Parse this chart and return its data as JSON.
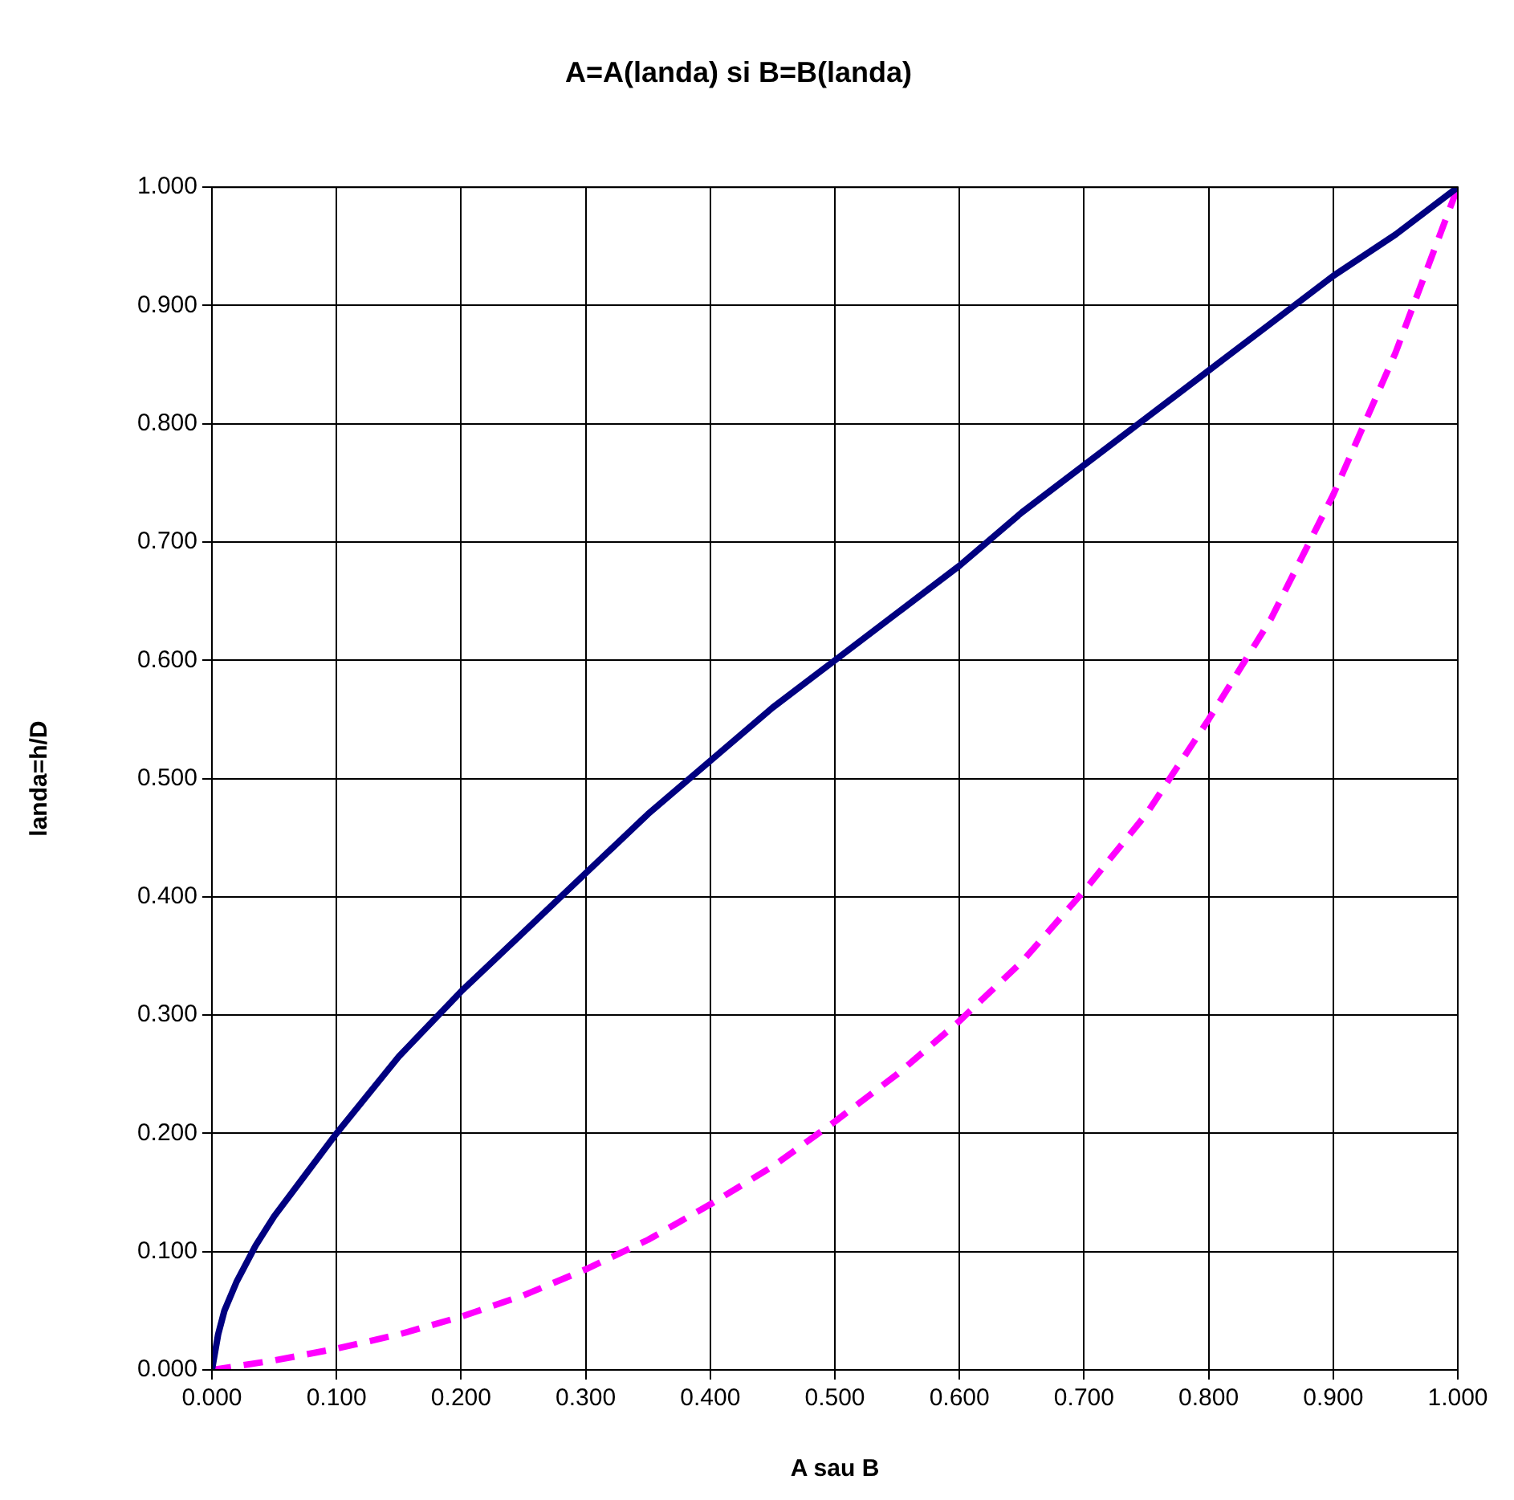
{
  "chart_data": {
    "type": "line",
    "title": "A=A(landa) si B=B(landa)",
    "xlabel": "A sau B",
    "ylabel": "landa=h/D",
    "xlim": [
      0,
      1
    ],
    "ylim": [
      0,
      1
    ],
    "xticks": [
      {
        "value": 0,
        "label": "0.000"
      },
      {
        "value": 0.1,
        "label": "0.100"
      },
      {
        "value": 0.2,
        "label": "0.200"
      },
      {
        "value": 0.3,
        "label": "0.300"
      },
      {
        "value": 0.4,
        "label": "0.400"
      },
      {
        "value": 0.5,
        "label": "0.500"
      },
      {
        "value": 0.6,
        "label": "0.600"
      },
      {
        "value": 0.7,
        "label": "0.700"
      },
      {
        "value": 0.8,
        "label": "0.800"
      },
      {
        "value": 0.9,
        "label": "0.900"
      },
      {
        "value": 1,
        "label": "1.000"
      }
    ],
    "yticks": [
      {
        "value": 0,
        "label": "0.000"
      },
      {
        "value": 0.1,
        "label": "0.100"
      },
      {
        "value": 0.2,
        "label": "0.200"
      },
      {
        "value": 0.3,
        "label": "0.300"
      },
      {
        "value": 0.4,
        "label": "0.400"
      },
      {
        "value": 0.5,
        "label": "0.500"
      },
      {
        "value": 0.6,
        "label": "0.600"
      },
      {
        "value": 0.7,
        "label": "0.700"
      },
      {
        "value": 0.8,
        "label": "0.800"
      },
      {
        "value": 0.9,
        "label": "0.900"
      },
      {
        "value": 1,
        "label": "1.000"
      }
    ],
    "grid": true,
    "legend": false,
    "marker": "none",
    "series": [
      {
        "color": "#000080",
        "line_style": "solid",
        "x": [
          0,
          0.005,
          0.01,
          0.02,
          0.035,
          0.05,
          0.075,
          0.1,
          0.15,
          0.2,
          0.25,
          0.3,
          0.35,
          0.4,
          0.45,
          0.5,
          0.55,
          0.6,
          0.65,
          0.7,
          0.75,
          0.8,
          0.85,
          0.9,
          0.95,
          1
        ],
        "values": [
          0,
          0.03,
          0.05,
          0.075,
          0.105,
          0.13,
          0.165,
          0.2,
          0.265,
          0.32,
          0.37,
          0.42,
          0.47,
          0.515,
          0.56,
          0.6,
          0.64,
          0.68,
          0.725,
          0.765,
          0.805,
          0.845,
          0.885,
          0.925,
          0.96,
          1
        ]
      },
      {
        "color": "#ff00ff",
        "line_style": "dashed",
        "x": [
          0,
          0.05,
          0.1,
          0.15,
          0.2,
          0.25,
          0.3,
          0.35,
          0.4,
          0.45,
          0.5,
          0.55,
          0.6,
          0.65,
          0.7,
          0.75,
          0.8,
          0.85,
          0.9,
          0.925,
          0.95,
          0.975,
          1
        ],
        "values": [
          0,
          0.008,
          0.018,
          0.03,
          0.045,
          0.063,
          0.085,
          0.11,
          0.14,
          0.172,
          0.21,
          0.25,
          0.295,
          0.345,
          0.405,
          0.47,
          0.55,
          0.635,
          0.74,
          0.8,
          0.86,
          0.93,
          1
        ]
      }
    ]
  }
}
